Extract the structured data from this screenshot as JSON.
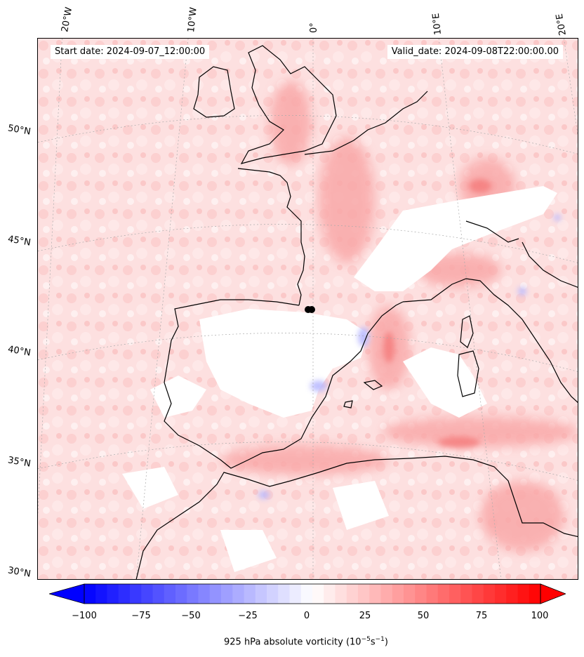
{
  "annotations": {
    "start_date": "Start date: 2024-09-07_12:00:00",
    "valid_date": "Valid_date: 2024-09-08T22:00:00.00"
  },
  "longitude_labels": [
    "20°W",
    "10°W",
    "0°",
    "10°E",
    "20°E"
  ],
  "latitude_labels": [
    "50°N",
    "45°N",
    "40°N",
    "35°N",
    "30°N"
  ],
  "colorbar": {
    "ticks": [
      "−100",
      "−75",
      "−50",
      "−25",
      "0",
      "25",
      "50",
      "75",
      "100"
    ],
    "label": "925 hPa absolute vorticity (10",
    "label_exp1": "−5",
    "label_mid": "s",
    "label_exp2": "−1",
    "label_end": ")",
    "min": -100,
    "max": 100,
    "levels": 40,
    "extend": "both",
    "colormap": "bwr",
    "color_low": "#0000ff",
    "color_mid": "#ffffff",
    "color_high": "#ff0000"
  },
  "map": {
    "projection": "lambert-conformal",
    "extent_lon": [
      -20,
      20
    ],
    "extent_lat": [
      30,
      53
    ],
    "gridlines": "dotted",
    "coastline_color": "#000000"
  }
}
